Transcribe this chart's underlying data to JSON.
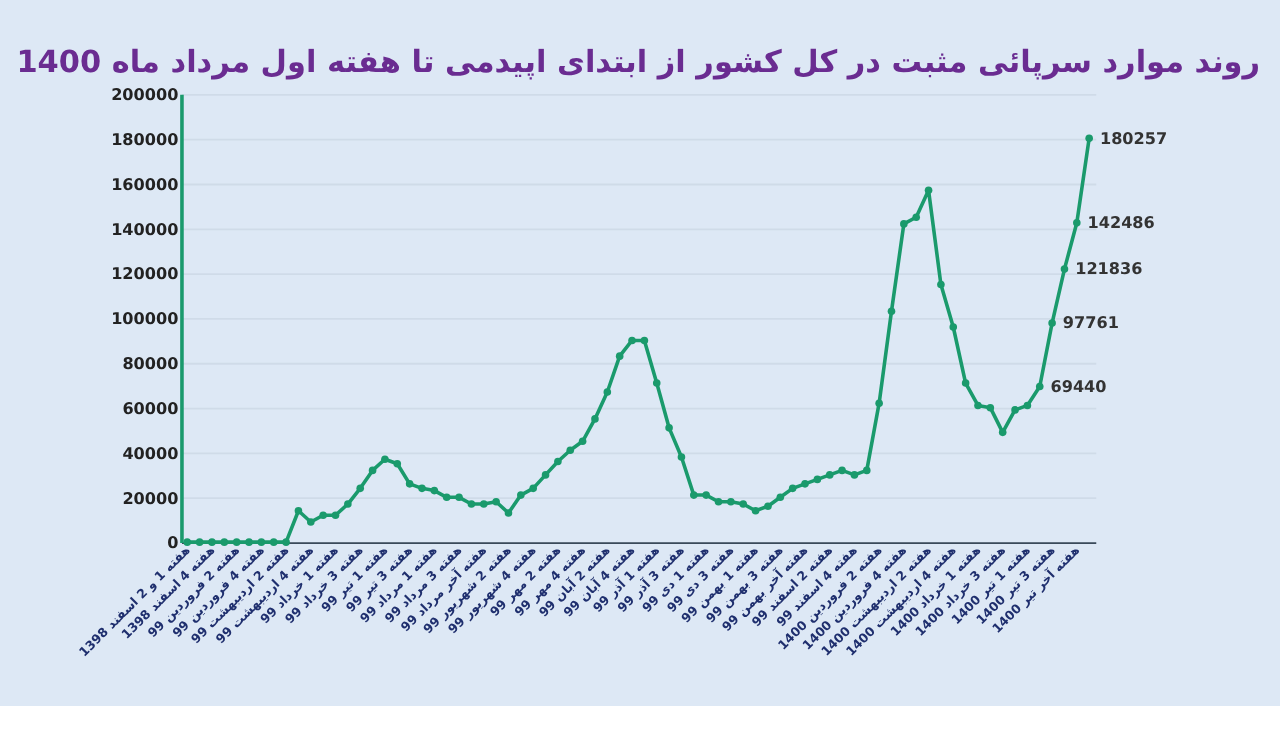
{
  "chart_data": {
    "type": "line",
    "title": "روند موارد سرپائی مثبت در کل کشور از ابتدای اپیدمی تا هفته اول مرداد ماه 1400",
    "categories": [
      "هفته 1 و 2 اسفند 1398",
      null,
      "هفته 4 اسفند 1398",
      null,
      "هفته 2 فروردین 99",
      null,
      "هفته 4 فروردین 99",
      null,
      "هفته 2 اردیبهشت 99",
      null,
      "هفته 4 اردیبهشت 99",
      null,
      "هفته 1 خرداد 99",
      null,
      "هفته 3 خرداد 99",
      null,
      "هفته 1 تیر 99",
      null,
      "هفته 3 تیر 99",
      null,
      "هفته 1 مرداد 99",
      null,
      "هفته 3 مرداد 99",
      null,
      "هفته آخر مرداد 99",
      null,
      "هفته 2 شهریور 99",
      null,
      "هفته 4 شهریور 99",
      null,
      "هفته 2 مهر 99",
      null,
      "هفته 4 مهر 99",
      null,
      "هفته 2 آبان 99",
      null,
      "هفته 4 آبان 99",
      null,
      "هفته 1 آذر 99",
      null,
      "هفته 3 آذر 99",
      null,
      "هفته 1 دی 99",
      null,
      "هفته 3 دی 99",
      null,
      "هفته 1 بهمن 99",
      null,
      "هفته 3 بهمن 99",
      null,
      "هفته آخر بهمن 99",
      null,
      "هفته 2 اسفند 99",
      null,
      "هفته 4 اسفند 99",
      null,
      "هفته 2 فروردین 1400",
      null,
      "هفته 4 فروردین 1400",
      null,
      "هفته 2 اردیبهشت 1400",
      null,
      "هفته 4 اردیبهشت 1400",
      null,
      "هفته 1 خرداد 1400",
      null,
      "هفته 3 خرداد 1400",
      null,
      "هفته 1 تیر 1400",
      null,
      "هفته 3 تیر 1400",
      null,
      "هفته آخر تیر 1400",
      null
    ],
    "series": [
      {
        "color": "#1a9a6c",
        "values": [
          0,
          0,
          0,
          0,
          0,
          0,
          0,
          0,
          0,
          14000,
          9000,
          12000,
          12000,
          17000,
          24000,
          32000,
          37000,
          35000,
          26000,
          24000,
          23000,
          20000,
          20000,
          17000,
          17000,
          18000,
          13000,
          21000,
          24000,
          30000,
          36000,
          41000,
          45000,
          55000,
          67000,
          83000,
          90000,
          90000,
          71000,
          51000,
          38000,
          21000,
          21000,
          18000,
          18000,
          17000,
          14000,
          16000,
          20000,
          24000,
          26000,
          28000,
          30000,
          32000,
          30000,
          32000,
          62000,
          103000,
          142000,
          145000,
          157000,
          115000,
          96000,
          71000,
          61000,
          60000,
          49000,
          59000,
          61000,
          69440,
          97761,
          121836,
          142486,
          180257
        ],
        "value_labels": [
          null,
          null,
          null,
          null,
          null,
          null,
          null,
          null,
          null,
          null,
          null,
          null,
          null,
          null,
          null,
          null,
          null,
          null,
          null,
          null,
          null,
          null,
          null,
          null,
          null,
          null,
          null,
          null,
          null,
          null,
          null,
          null,
          null,
          null,
          null,
          null,
          null,
          null,
          null,
          null,
          null,
          null,
          null,
          null,
          null,
          null,
          null,
          null,
          null,
          null,
          null,
          null,
          null,
          null,
          null,
          null,
          null,
          null,
          null,
          null,
          null,
          null,
          null,
          null,
          null,
          null,
          null,
          null,
          null,
          "69440",
          "97761",
          "121836",
          "142486",
          "180257"
        ]
      }
    ],
    "ylim": [
      0,
      200000
    ],
    "yticks": [
      0,
      20000,
      40000,
      60000,
      80000,
      100000,
      120000,
      140000,
      160000,
      180000,
      200000
    ],
    "grid": "y",
    "marker": "circle",
    "line_style": "solid"
  }
}
